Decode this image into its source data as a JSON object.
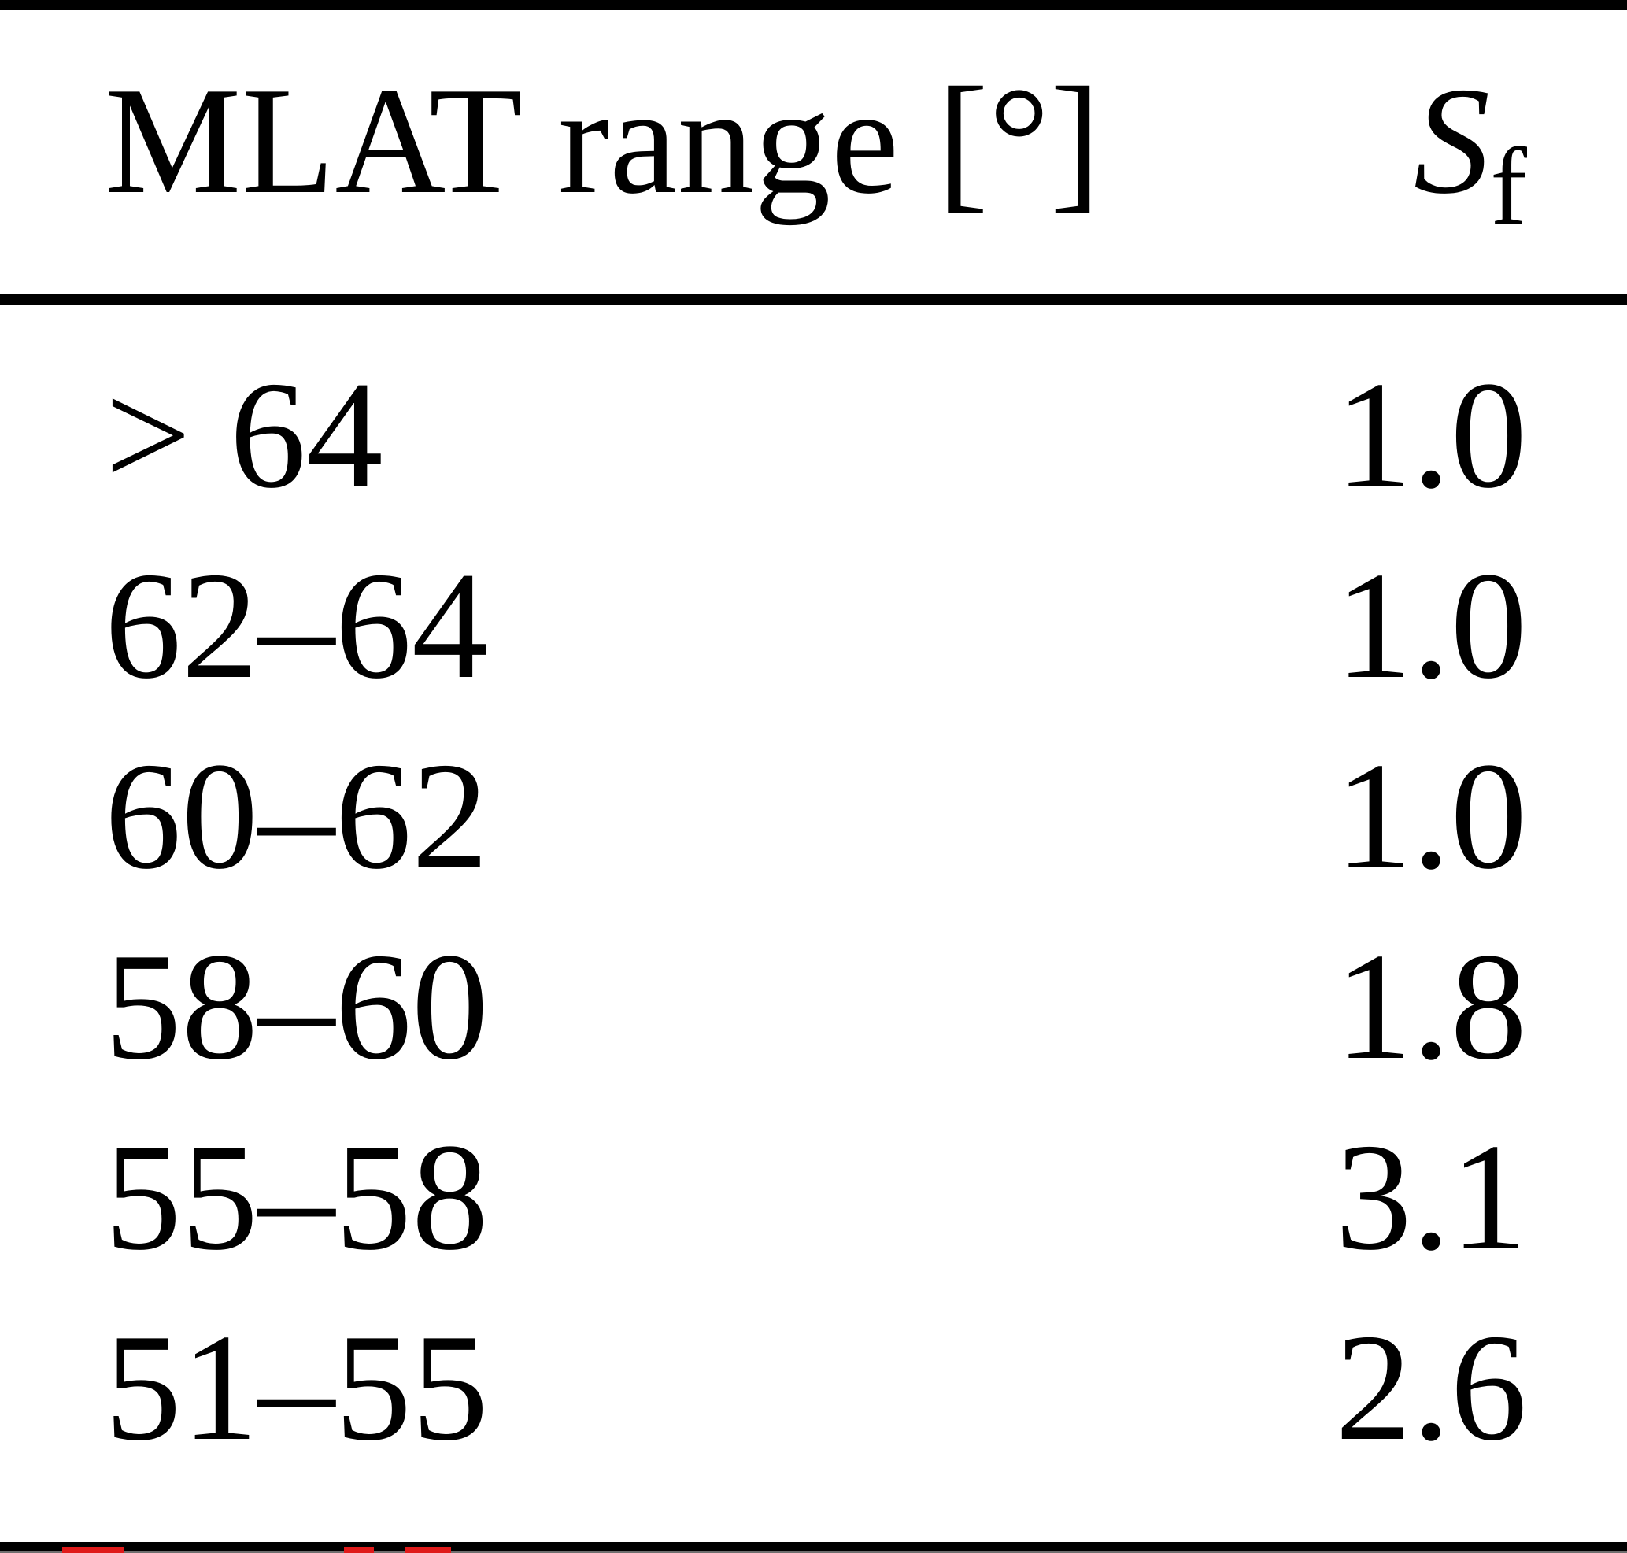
{
  "table": {
    "header": {
      "col1": "MLAT range [°]",
      "col2_main": "S",
      "col2_sub": "f"
    },
    "rows": [
      {
        "range": "> 64",
        "sf": "1.0"
      },
      {
        "range": "62–64",
        "sf": "1.0"
      },
      {
        "range": "60–62",
        "sf": "1.0"
      },
      {
        "range": "58–60",
        "sf": "1.8"
      },
      {
        "range": "55–58",
        "sf": "3.1"
      },
      {
        "range": "51–55",
        "sf": "2.6"
      }
    ]
  },
  "colors": {
    "text": "#000000",
    "rule": "#000000",
    "background": "#ffffff",
    "artifact_red": "#e01a1a"
  },
  "chart_data": {
    "type": "table",
    "title": "",
    "columns": [
      "MLAT range [°]",
      "Sf"
    ],
    "categories": [
      "> 64",
      "62–64",
      "60–62",
      "58–60",
      "55–58",
      "51–55"
    ],
    "values": [
      1.0,
      1.0,
      1.0,
      1.8,
      3.1,
      2.6
    ]
  }
}
